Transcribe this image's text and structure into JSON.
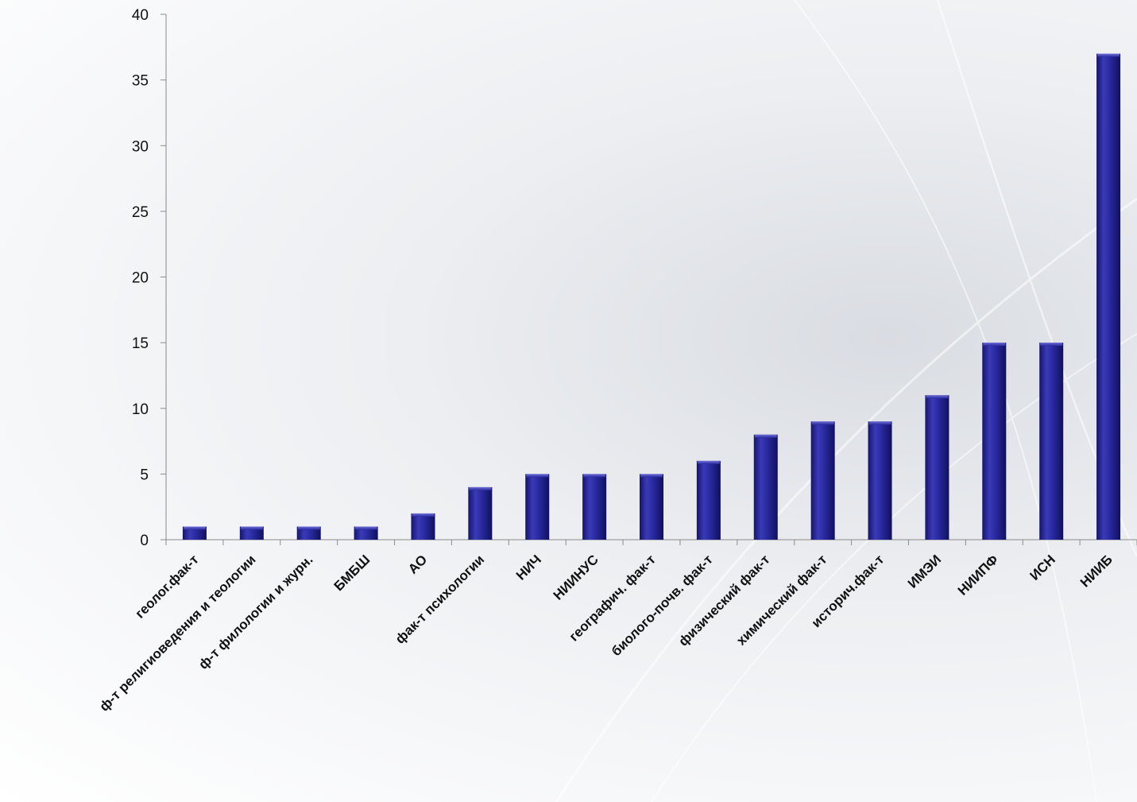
{
  "chart_data": {
    "type": "bar",
    "categories": [
      "геолог.фак-т",
      "ф-т религиоведения и теологии",
      "ф-т филологии и журн.",
      "БМБШ",
      "АО",
      "фак-т психологии",
      "НИЧ",
      "НИИНУС",
      "географич. фак-т",
      "биолого-почв. фак-т",
      "физический фак-т",
      "химический фак-т",
      "историч.фак-т",
      "ИМЭИ",
      "НИИПФ",
      "ИСН",
      "НИИБ"
    ],
    "values": [
      1,
      1,
      1,
      1,
      2,
      4,
      5,
      5,
      5,
      6,
      8,
      9,
      9,
      11,
      15,
      15,
      37
    ],
    "ylim": [
      0,
      40
    ],
    "yticks": [
      0,
      5,
      10,
      15,
      20,
      25,
      30,
      35,
      40
    ],
    "bar_color": "#24248f",
    "grid": false,
    "legend": "none"
  }
}
